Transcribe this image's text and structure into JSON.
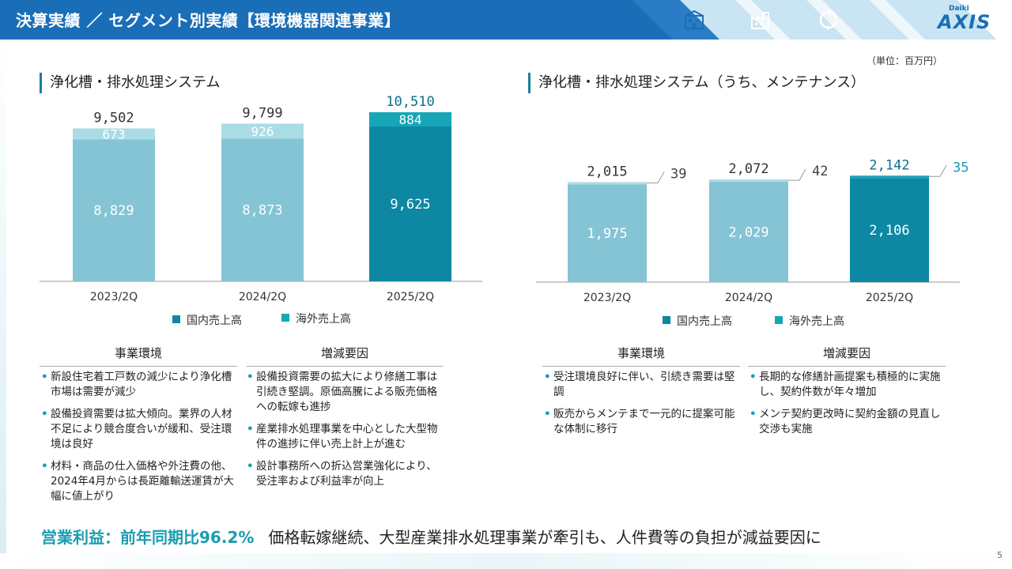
{
  "header": {
    "title": "決算実績 ／ セグメント別実績【環境機器関連事業】",
    "icons": [
      "building-icon",
      "factory-icon",
      "recycle-icon"
    ],
    "logo_small": "Daiki",
    "logo_big": "AXIS"
  },
  "unit": "（単位：百万円）",
  "colors": {
    "domestic": "#0e87a3",
    "domestic_past": "#85c4d4",
    "overseas": "#17a6b6",
    "overseas_past": "#a9dce5",
    "accent": "#1a9cb0"
  },
  "left": {
    "title": "浄化槽・排水処理システム",
    "chart_data": {
      "type": "bar",
      "stacked": true,
      "categories": [
        "2023/2Q",
        "2024/2Q",
        "2025/2Q"
      ],
      "series": [
        {
          "name": "国内売上高",
          "values": [
            8829,
            8873,
            9625
          ]
        },
        {
          "name": "海外売上高",
          "values": [
            673,
            926,
            884
          ]
        }
      ],
      "totals": [
        9502,
        9799,
        10510
      ],
      "value_labels": {
        "domestic": [
          "8,829",
          "8,873",
          "9,625"
        ],
        "overseas": [
          "673",
          "926",
          "884"
        ],
        "totals": [
          "9,502",
          "9,799",
          "10,510"
        ]
      },
      "legend": [
        "国内売上高",
        "海外売上高"
      ]
    },
    "env_head": "事業環境",
    "env_items": [
      "新設住宅着工戸数の減少により浄化槽市場は需要が減少",
      "設備投資需要は拡大傾向。業界の人材不足により競合度合いが緩和、受注環境は良好",
      "材料・商品の仕入価格や外注費の他、2024年4月からは長距離輸送運賃が大幅に値上がり"
    ],
    "factor_head": "増減要因",
    "factor_items": [
      "設備投資需要の拡大により修繕工事は引続き堅調。原価高騰による販売価格への転嫁も進捗",
      "産業排水処理事業を中心とした大型物件の進捗に伴い売上計上が進む",
      "設計事務所への折込営業強化により、受注率および利益率が向上"
    ]
  },
  "right": {
    "title": "浄化槽・排水処理システム（うち、メンテナンス）",
    "chart_data": {
      "type": "bar",
      "stacked": true,
      "categories": [
        "2023/2Q",
        "2024/2Q",
        "2025/2Q"
      ],
      "series": [
        {
          "name": "国内売上高",
          "values": [
            1975,
            2029,
            2106
          ]
        },
        {
          "name": "海外売上高",
          "values": [
            39,
            42,
            35
          ]
        }
      ],
      "totals": [
        2015,
        2072,
        2142
      ],
      "value_labels": {
        "domestic": [
          "1,975",
          "2,029",
          "2,106"
        ],
        "overseas": [
          "39",
          "42",
          "35"
        ],
        "totals": [
          "2,015",
          "2,072",
          "2,142"
        ]
      },
      "legend": [
        "国内売上高",
        "海外売上高"
      ]
    },
    "env_head": "事業環境",
    "env_items": [
      "受注環境良好に伴い、引続き需要は堅調",
      "販売からメンテまで一元的に提案可能な体制に移行"
    ],
    "factor_head": "増減要因",
    "factor_items": [
      "長期的な修繕計画提案も積極的に実施し、契約件数が年々増加",
      "メンテ契約更改時に契約金額の見直し交渉も実施"
    ]
  },
  "footer": {
    "highlight": "営業利益：前年同期比96.2%",
    "text": "価格転嫁継続、大型産業排水処理事業が牽引も、人件費等の負担が減益要因に"
  },
  "page_number": "5"
}
